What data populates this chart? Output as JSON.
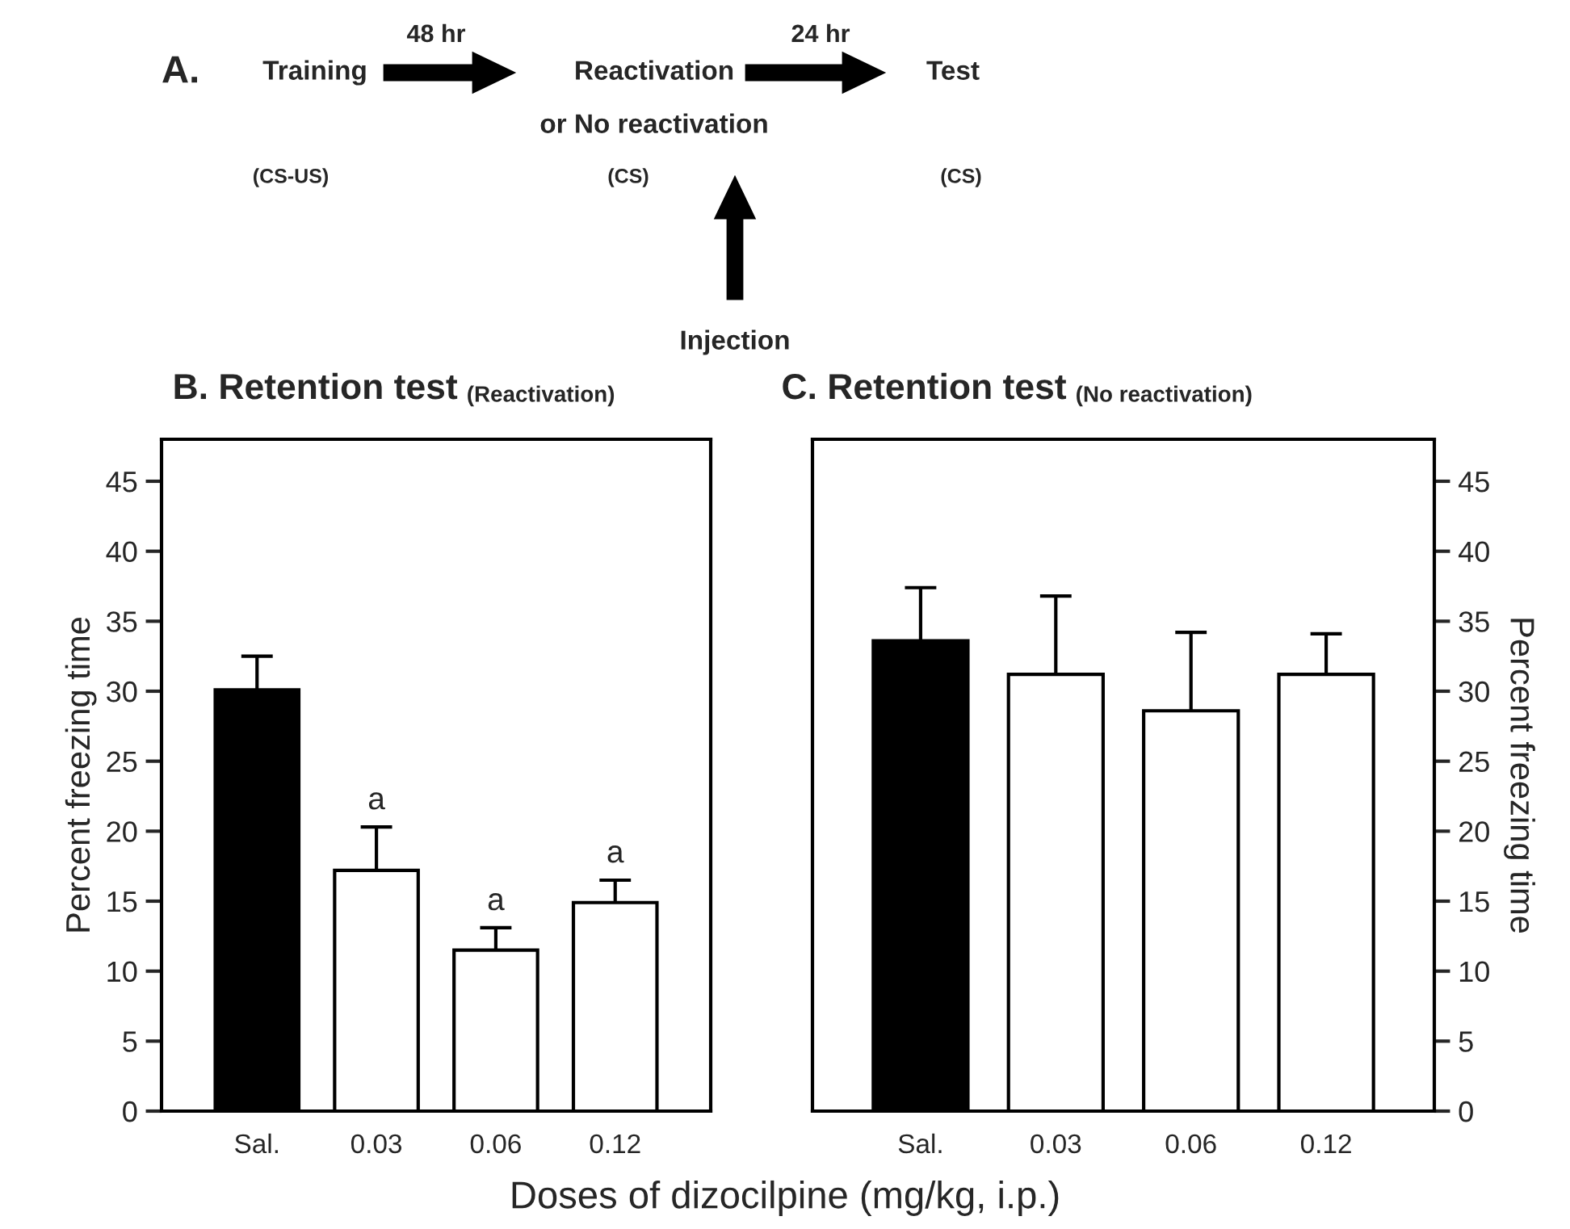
{
  "chart_data": [
    {
      "type": "other",
      "title": "A.",
      "annotations": [
        "Training",
        "48 hr",
        "Reactivation",
        "or No reactivation",
        "24 hr",
        "Test",
        "(CS-US)",
        "(CS)",
        "(CS)",
        "Injection"
      ]
    },
    {
      "type": "bar",
      "title": "B. Retention test",
      "subtitle": "(Reactivation)",
      "ylabel": "Percent freezing time",
      "xlabel": "Doses of dizocilpine (mg/kg, i.p.)",
      "categories": [
        "Sal.",
        "0.03",
        "0.06",
        "0.12"
      ],
      "values": [
        30.1,
        17.2,
        11.5,
        14.9
      ],
      "errors": [
        2.4,
        3.1,
        1.6,
        1.6
      ],
      "colors": [
        "#000000",
        "#ffffff",
        "#ffffff",
        "#ffffff"
      ],
      "ylim": [
        0,
        48
      ],
      "yticks": [
        0,
        5,
        10,
        15,
        20,
        25,
        30,
        35,
        40,
        45
      ],
      "grid": false,
      "annotations": [
        {
          "text": "a",
          "x": "0.03",
          "y": 20.3
        },
        {
          "text": "a",
          "x": "0.06",
          "y": 13.1
        },
        {
          "text": "a",
          "x": "0.12",
          "y": 16.5
        }
      ]
    },
    {
      "type": "bar",
      "title": "C. Retention test",
      "subtitle": "(No reactivation)",
      "ylabel": "Percent freezing time",
      "categories": [
        "Sal.",
        "0.03",
        "0.06",
        "0.12"
      ],
      "values": [
        33.6,
        31.2,
        28.6,
        31.2
      ],
      "errors": [
        3.8,
        5.6,
        5.6,
        2.9
      ],
      "colors": [
        "#000000",
        "#ffffff",
        "#ffffff",
        "#ffffff"
      ],
      "ylim": [
        0,
        48
      ],
      "yticks": [
        0,
        5,
        10,
        15,
        20,
        25,
        30,
        35,
        40,
        45
      ],
      "grid": false
    }
  ]
}
